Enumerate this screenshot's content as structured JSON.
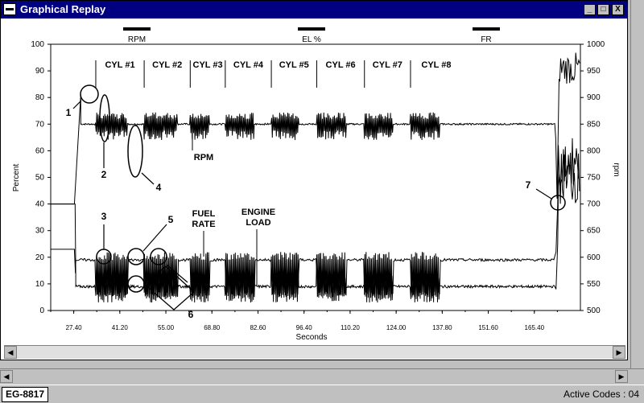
{
  "window": {
    "title": "Graphical Replay",
    "controls": {
      "minimize": "_",
      "maximize": "□",
      "close": "X"
    }
  },
  "legend": [
    {
      "label": "RPM"
    },
    {
      "label": "EL %"
    },
    {
      "label": "FR"
    }
  ],
  "chart_data": {
    "type": "line",
    "xlabel": "Seconds",
    "ylabel_left": "Percent",
    "ylabel_right": "rpm",
    "xticks": [
      "27.40",
      "41.20",
      "55.00",
      "68.80",
      "82.60",
      "96.40",
      "110.20",
      "124.00",
      "137.80",
      "151.60",
      "165.40"
    ],
    "yticks_left": [
      "0",
      "10",
      "20",
      "30",
      "40",
      "50",
      "60",
      "70",
      "80",
      "90",
      "100"
    ],
    "yticks_right": [
      "500",
      "550",
      "600",
      "650",
      "700",
      "750",
      "800",
      "850",
      "900",
      "950",
      "1000"
    ],
    "xlim": [
      20.5,
      179.2
    ],
    "ylim_left": [
      0,
      100
    ],
    "ylim_right": [
      500,
      1000
    ],
    "cylinders": [
      "CYL #1",
      "CYL #2",
      "CYL #3",
      "CYL #4",
      "CYL #5",
      "CYL #6",
      "CYL #7",
      "CYL #8"
    ],
    "cylinder_windows": [
      [
        34.0,
        43.5
      ],
      [
        48.5,
        58.5
      ],
      [
        62.3,
        68.0
      ],
      [
        72.8,
        81.5
      ],
      [
        86.6,
        94.8
      ],
      [
        100.2,
        109.0
      ],
      [
        114.5,
        123.0
      ],
      [
        128.3,
        137.0
      ]
    ],
    "series": [
      {
        "name": "RPM",
        "baseline": 850,
        "idle": 700,
        "peak": 905
      },
      {
        "name": "ENGINE LOAD",
        "baseline": 9,
        "idle": 40,
        "active": 14
      },
      {
        "name": "FUEL RATE",
        "baseline": 19,
        "idle": 23
      }
    ],
    "annotations": [
      {
        "label": "RPM"
      },
      {
        "label": "FUEL\nRATE"
      },
      {
        "label": "ENGINE\nLOAD"
      },
      {
        "label": "1"
      },
      {
        "label": "2"
      },
      {
        "label": "3"
      },
      {
        "label": "4"
      },
      {
        "label": "5"
      },
      {
        "label": "6"
      },
      {
        "label": "7"
      }
    ]
  },
  "status": {
    "left": "EG-8817",
    "right": "Active Codes : 04"
  }
}
